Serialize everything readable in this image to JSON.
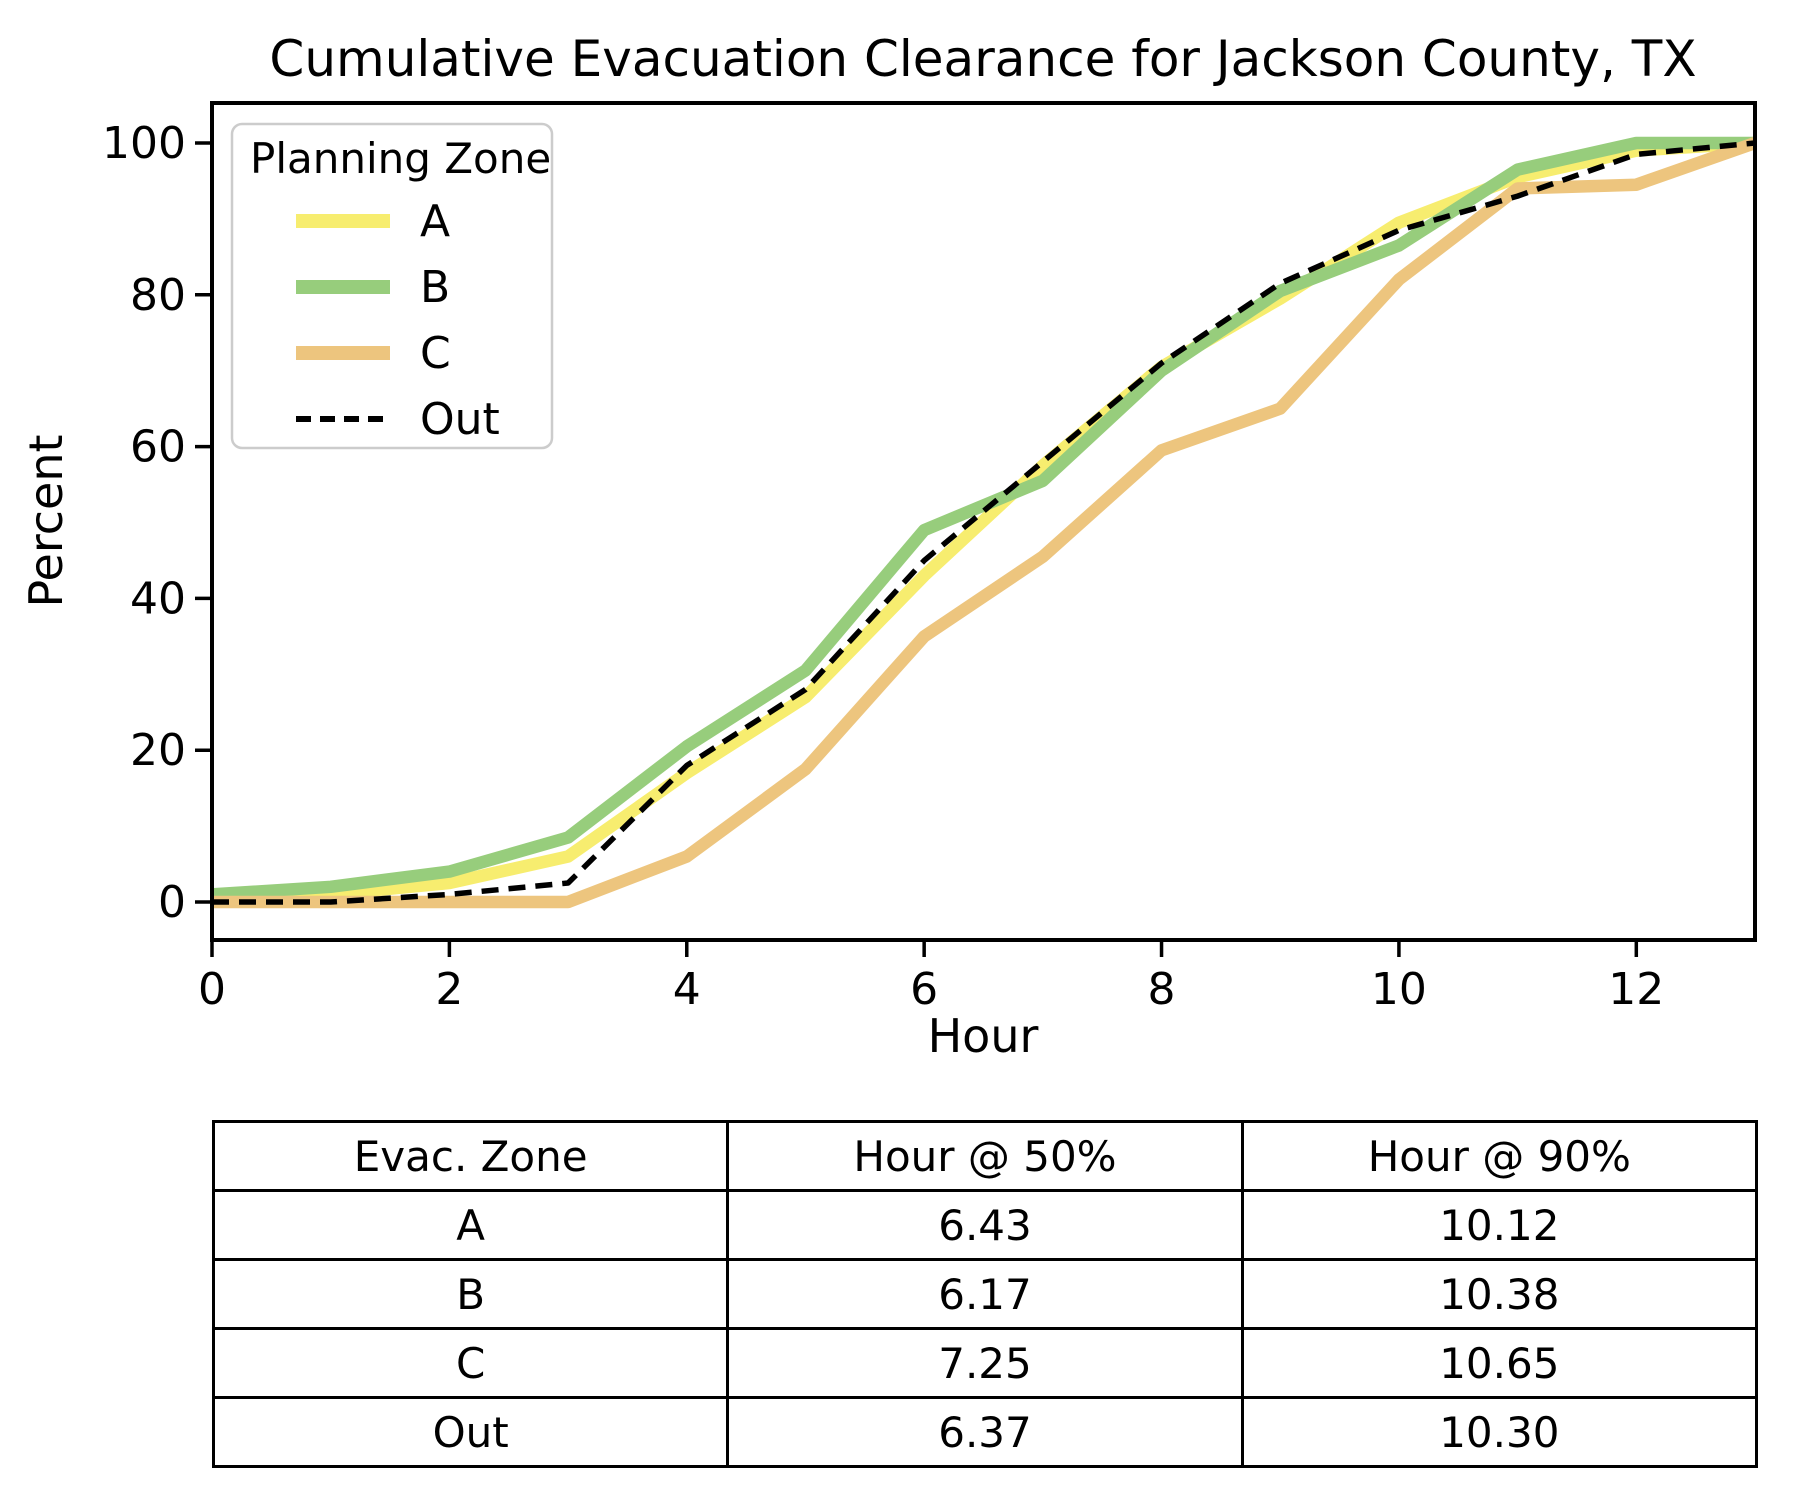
{
  "title": "Cumulative Evacuation Clearance for Jackson County, TX",
  "chart_data": {
    "type": "line",
    "title": "Cumulative Evacuation Clearance for Jackson County, TX",
    "xlabel": "Hour",
    "ylabel": "Percent",
    "xlim": [
      0,
      13
    ],
    "ylim": [
      -5,
      105
    ],
    "grid": false,
    "legend_title": "Planning Zone",
    "legend_position": "upper left",
    "xticks": [
      0,
      2,
      4,
      6,
      8,
      10,
      12
    ],
    "yticks": [
      0,
      20,
      40,
      60,
      80,
      100
    ],
    "x": [
      0,
      1,
      2,
      3,
      4,
      5,
      6,
      7,
      8,
      9,
      10,
      11,
      12,
      13
    ],
    "series": [
      {
        "name": "A",
        "color": "#f7ed6f",
        "style": "solid",
        "values": [
          0.5,
          1,
          2.5,
          6,
          17,
          27,
          43,
          57.5,
          70.5,
          79.5,
          89.5,
          95.5,
          99,
          100
        ]
      },
      {
        "name": "B",
        "color": "#97cd7c",
        "style": "solid",
        "values": [
          1,
          2,
          4,
          8.5,
          20.5,
          30.5,
          49,
          55.5,
          70,
          80.5,
          86.5,
          96.5,
          100,
          100
        ]
      },
      {
        "name": "C",
        "color": "#edc57e",
        "style": "solid",
        "values": [
          0,
          0,
          0,
          0,
          6,
          17.5,
          35,
          45.5,
          59.5,
          65,
          82,
          94,
          94.5,
          100
        ]
      },
      {
        "name": "Out",
        "color": "#000000",
        "style": "dashed",
        "values": [
          0,
          0,
          1,
          2.5,
          18,
          28,
          45,
          58,
          71,
          81.5,
          88.5,
          93,
          98.5,
          100
        ]
      }
    ]
  },
  "table": {
    "headers": [
      "Evac. Zone",
      "Hour @ 50%",
      "Hour @ 90%"
    ],
    "rows": [
      [
        "A",
        "6.43",
        "10.12"
      ],
      [
        "B",
        "6.17",
        "10.38"
      ],
      [
        "C",
        "7.25",
        "10.65"
      ],
      [
        "Out",
        "6.37",
        "10.30"
      ]
    ]
  }
}
